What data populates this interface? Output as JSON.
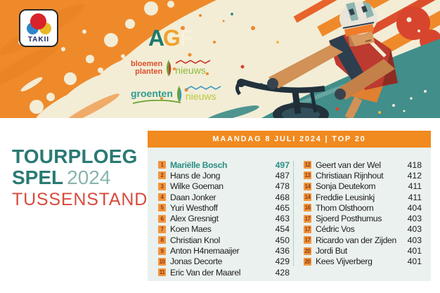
{
  "banner": {
    "takii": "TAKII",
    "agf": {
      "a": "A",
      "g": "G",
      "f": "F"
    },
    "bloemen": {
      "line1": "bloemen",
      "line2": "planten",
      "suffix": "nieuws"
    },
    "groenten": {
      "name": "groenten",
      "suffix": "nieuws"
    }
  },
  "title": {
    "line1": "TOURPLOEG",
    "line2_word": "SPEL",
    "line2_year": "2024",
    "line3": "TUSSENSTAND"
  },
  "table": {
    "header": "MAANDAG 8 JULI 2024 | TOP 20",
    "left_rows": [
      {
        "rank": 1,
        "name": "Mariëlle Bosch",
        "points": 497,
        "highlight": true
      },
      {
        "rank": 2,
        "name": "Hans de Jong",
        "points": 487
      },
      {
        "rank": 3,
        "name": "Wilke Goeman",
        "points": 478
      },
      {
        "rank": 4,
        "name": "Daan Jonker",
        "points": 468
      },
      {
        "rank": 5,
        "name": "Yuri Westhoff",
        "points": 465
      },
      {
        "rank": 6,
        "name": "Alex Gresnigt",
        "points": 463
      },
      {
        "rank": 7,
        "name": "Koen Maes",
        "points": 454
      },
      {
        "rank": 8,
        "name": "Christian Knol",
        "points": 450
      },
      {
        "rank": 9,
        "name": "Anton H4nemaaijer",
        "points": 436
      },
      {
        "rank": 10,
        "name": "Jonas Decorte",
        "points": 429
      },
      {
        "rank": 11,
        "name": "Eric Van der Maarel",
        "points": 428
      }
    ],
    "right_rows": [
      {
        "rank": 12,
        "name": "Geert van der Wel",
        "points": 418
      },
      {
        "rank": 13,
        "name": "Christiaan Rijnhout",
        "points": 412
      },
      {
        "rank": 14,
        "name": "Sonja Deutekom",
        "points": 411
      },
      {
        "rank": 14,
        "name": "Freddie Leusinkj",
        "points": 411
      },
      {
        "rank": 16,
        "name": "Thom Olsthoorn",
        "points": 404
      },
      {
        "rank": 17,
        "name": "Sjoerd Posthumus",
        "points": 403
      },
      {
        "rank": 17,
        "name": "Cédric Vos",
        "points": 403
      },
      {
        "rank": 17,
        "name": "Ricardo van der Zijden",
        "points": 403
      },
      {
        "rank": 20,
        "name": "Jordi But",
        "points": 401
      },
      {
        "rank": 20,
        "name": "Kees Vijverberg",
        "points": 401
      }
    ]
  },
  "colors": {
    "accent_orange": "#f18a1f",
    "badge_orange": "#f0953e",
    "badge_text": "#93380a",
    "teal_dark": "#2a7a74",
    "teal_light": "#8ab5b0",
    "highlight_teal": "#2a8f84",
    "subtitle_red": "#d74b3d",
    "panel_bg": "#eaf1ee",
    "banner_orange": "#ef8a2b",
    "banner_cream": "#f3edd6",
    "banner_teal": "#418e8a"
  },
  "icons": {
    "takii-logo": "three overlapping circles (red, blue, yellow)",
    "leaf-icon": "two curved leaves",
    "zigzag-icon": "wavy line",
    "cyclist-illustration": "stylized road cyclist with paint splatter"
  }
}
